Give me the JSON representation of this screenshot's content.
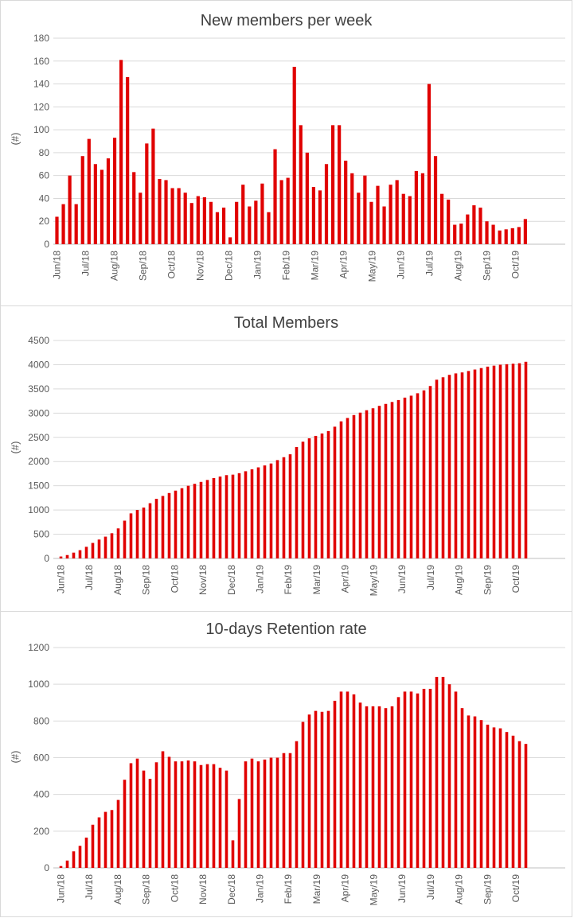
{
  "chart_data": [
    {
      "type": "bar",
      "title": "New members per week",
      "xlabel": "",
      "ylabel": "(#)",
      "ylim": [
        0,
        180
      ],
      "yticks": [
        0,
        20,
        40,
        60,
        80,
        100,
        120,
        140,
        160,
        180
      ],
      "grid": true,
      "color": "#e00000",
      "month_labels": [
        "Jun/18",
        "Jul/18",
        "Aug/18",
        "Sep/18",
        "Oct/18",
        "Nov/18",
        "Dec/18",
        "Jan/19",
        "Feb/19",
        "Mar/19",
        "Apr/19",
        "May/19",
        "Jun/19",
        "Jul/19",
        "Aug/19",
        "Sep/19",
        "Oct/19"
      ],
      "values": [
        24,
        35,
        60,
        35,
        77,
        92,
        70,
        65,
        75,
        93,
        161,
        146,
        63,
        45,
        88,
        101,
        57,
        56,
        49,
        49,
        45,
        36,
        42,
        41,
        37,
        28,
        32,
        6,
        37,
        52,
        33,
        38,
        53,
        28,
        83,
        56,
        58,
        155,
        104,
        80,
        50,
        47,
        70,
        104,
        104,
        73,
        62,
        45,
        60,
        37,
        51,
        33,
        52,
        56,
        44,
        42,
        64,
        62,
        140,
        77,
        44,
        39,
        17,
        18,
        26,
        34,
        32,
        20,
        17,
        12,
        13,
        14,
        15,
        22
      ]
    },
    {
      "type": "bar",
      "title": "Total Members",
      "xlabel": "",
      "ylabel": "(#)",
      "ylim": [
        0,
        4500
      ],
      "yticks": [
        0,
        500,
        1000,
        1500,
        2000,
        2500,
        3000,
        3500,
        4000,
        4500
      ],
      "grid": true,
      "color": "#e00000",
      "month_labels": [
        "Jun/18",
        "Jul/18",
        "Aug/18",
        "Sep/18",
        "Oct/18",
        "Nov/18",
        "Dec/18",
        "Jan/19",
        "Feb/19",
        "Mar/19",
        "Apr/19",
        "May/19",
        "Jun/19",
        "Jul/19",
        "Aug/19",
        "Sep/19",
        "Oct/19"
      ],
      "values": [
        40,
        70,
        120,
        170,
        240,
        320,
        390,
        450,
        520,
        620,
        780,
        930,
        1000,
        1050,
        1140,
        1230,
        1290,
        1350,
        1400,
        1450,
        1500,
        1540,
        1580,
        1620,
        1660,
        1690,
        1720,
        1730,
        1760,
        1800,
        1840,
        1880,
        1920,
        1960,
        2030,
        2090,
        2150,
        2300,
        2410,
        2480,
        2530,
        2580,
        2630,
        2720,
        2830,
        2900,
        2960,
        3010,
        3060,
        3100,
        3150,
        3190,
        3230,
        3270,
        3320,
        3360,
        3410,
        3470,
        3560,
        3690,
        3740,
        3790,
        3820,
        3840,
        3870,
        3900,
        3930,
        3960,
        3980,
        4000,
        4010,
        4020,
        4030,
        4060
      ]
    },
    {
      "type": "bar",
      "title": "10-days Retention rate",
      "xlabel": "",
      "ylabel": "(#)",
      "ylim": [
        0,
        1200
      ],
      "yticks": [
        0,
        200,
        400,
        600,
        800,
        1000,
        1200
      ],
      "grid": true,
      "color": "#e00000",
      "month_labels": [
        "Jun/18",
        "Jul/18",
        "Aug/18",
        "Sep/18",
        "Oct/18",
        "Nov/18",
        "Dec/18",
        "Jan/19",
        "Feb/19",
        "Mar/19",
        "Apr/19",
        "May/19",
        "Jun/19",
        "Jul/19",
        "Aug/19",
        "Sep/19",
        "Oct/19"
      ],
      "values": [
        10,
        40,
        90,
        120,
        165,
        235,
        275,
        305,
        315,
        370,
        480,
        570,
        595,
        530,
        485,
        575,
        635,
        605,
        580,
        580,
        585,
        580,
        560,
        565,
        565,
        545,
        530,
        150,
        375,
        580,
        595,
        580,
        590,
        600,
        600,
        625,
        625,
        690,
        795,
        835,
        855,
        850,
        855,
        910,
        960,
        960,
        945,
        900,
        880,
        880,
        880,
        870,
        880,
        930,
        960,
        960,
        950,
        975,
        975,
        1040,
        1040,
        1000,
        960,
        870,
        830,
        825,
        805,
        780,
        765,
        760,
        740,
        720,
        690,
        675
      ]
    }
  ]
}
